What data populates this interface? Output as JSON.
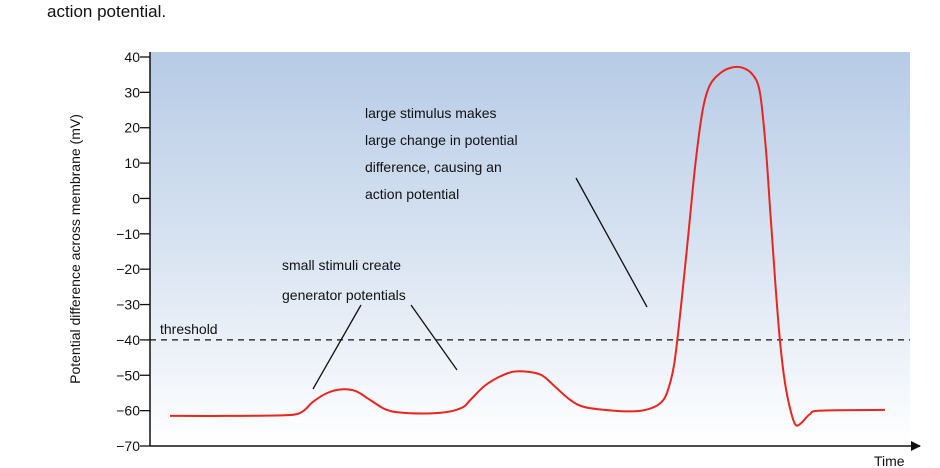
{
  "caption": "action potential.",
  "chart_data": {
    "type": "line",
    "title": "",
    "ylabel": "Potential difference across membrane (mV)",
    "xlabel": "Time",
    "ylim": [
      -70,
      40
    ],
    "yticks": [
      40,
      30,
      20,
      10,
      0,
      -10,
      -20,
      -30,
      -40,
      -50,
      -60,
      -70
    ],
    "ytick_labels": [
      "40",
      "30",
      "20",
      "10",
      "0",
      "−10",
      "−20",
      "−30",
      "−40",
      "−50",
      "−60",
      "−70"
    ],
    "threshold": {
      "label": "threshold",
      "value": -40
    },
    "series": [
      {
        "color": "#e8251f",
        "points": [
          [
            0,
            -61.5
          ],
          [
            8,
            -61.5
          ],
          [
            16,
            -61.3
          ],
          [
            18,
            -60.8
          ],
          [
            19,
            -59.5
          ],
          [
            20,
            -57.5
          ],
          [
            22,
            -55.0
          ],
          [
            24,
            -54.0
          ],
          [
            26,
            -54.5
          ],
          [
            28,
            -57.0
          ],
          [
            30,
            -59.5
          ],
          [
            32,
            -60.5
          ],
          [
            36,
            -60.8
          ],
          [
            39,
            -60.3
          ],
          [
            41,
            -59.0
          ],
          [
            42,
            -57.0
          ],
          [
            44,
            -53.0
          ],
          [
            46,
            -50.5
          ],
          [
            48,
            -49.0
          ],
          [
            50,
            -49.0
          ],
          [
            52,
            -50.0
          ],
          [
            54,
            -53.5
          ],
          [
            56,
            -57.0
          ],
          [
            58,
            -59.0
          ],
          [
            62,
            -60.0
          ],
          [
            65,
            -60.2
          ],
          [
            67,
            -59.5
          ],
          [
            68.5,
            -58.0
          ],
          [
            69.5,
            -55.0
          ],
          [
            70.5,
            -47.0
          ],
          [
            71.5,
            -30.0
          ],
          [
            72.5,
            -10.0
          ],
          [
            73.5,
            10.0
          ],
          [
            74.5,
            25.0
          ],
          [
            75.5,
            32.0
          ],
          [
            77,
            35.5
          ],
          [
            78.5,
            37.0
          ],
          [
            80,
            37.0
          ],
          [
            81.5,
            35.0
          ],
          [
            82.5,
            30.0
          ],
          [
            83.3,
            15.0
          ],
          [
            84,
            -5.0
          ],
          [
            84.7,
            -25.0
          ],
          [
            85.3,
            -40.0
          ],
          [
            86,
            -52.0
          ],
          [
            86.8,
            -60.0
          ],
          [
            87.5,
            -64.0
          ],
          [
            88.3,
            -63.5
          ],
          [
            89.5,
            -61.0
          ],
          [
            91,
            -60.0
          ],
          [
            100,
            -59.8
          ]
        ]
      }
    ],
    "annotations": [
      {
        "id": "small",
        "lines": [
          "small stimuli create",
          "generator potentials"
        ]
      },
      {
        "id": "large",
        "lines": [
          "large stimulus makes",
          "large change in potential",
          "difference, causing an",
          "action potential"
        ]
      }
    ]
  }
}
